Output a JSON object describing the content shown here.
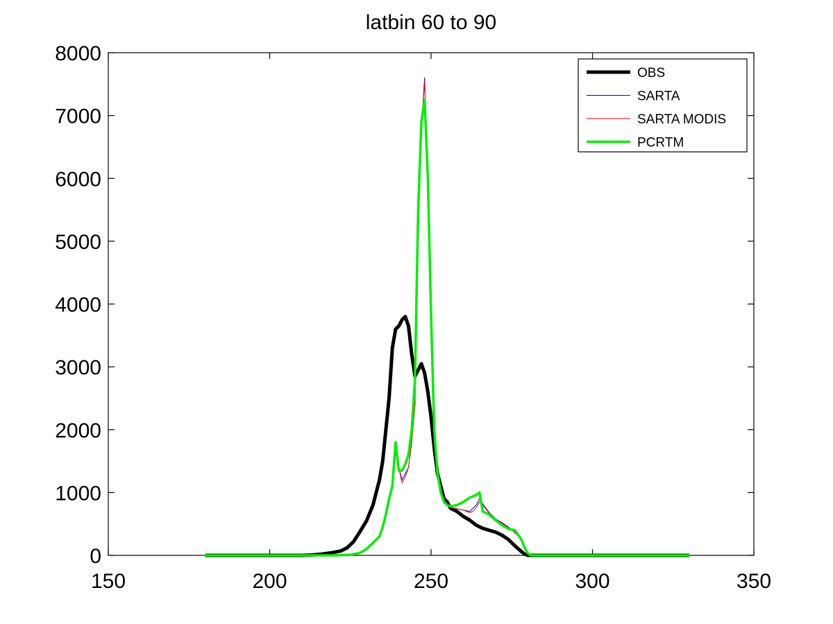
{
  "chart_data": {
    "type": "line",
    "title": "latbin 60  to 90",
    "xlabel": "",
    "ylabel": "",
    "xlim": [
      150,
      350
    ],
    "ylim": [
      0,
      8000
    ],
    "xticks": [
      150,
      200,
      250,
      300,
      350
    ],
    "yticks": [
      0,
      1000,
      2000,
      3000,
      4000,
      5000,
      6000,
      7000,
      8000
    ],
    "grid": false,
    "legend_position": "top-right",
    "series": [
      {
        "name": "OBS",
        "color": "#000000",
        "x": [
          180,
          200,
          210,
          213,
          216,
          219,
          222,
          224,
          226,
          228,
          230,
          232,
          234,
          235,
          236,
          237,
          238,
          239,
          240,
          241,
          242,
          243,
          244,
          245,
          246,
          247,
          248,
          249,
          250,
          251,
          252,
          253,
          254,
          255,
          256,
          258,
          260,
          262,
          264,
          266,
          268,
          270,
          272,
          274,
          276,
          278,
          279,
          280,
          285,
          300,
          330
        ],
        "values": [
          0,
          0,
          0,
          5,
          20,
          40,
          70,
          120,
          220,
          380,
          550,
          800,
          1200,
          1500,
          2000,
          2500,
          3300,
          3600,
          3650,
          3750,
          3800,
          3650,
          3200,
          2850,
          2950,
          3050,
          2900,
          2600,
          2200,
          1700,
          1300,
          1100,
          900,
          850,
          750,
          700,
          620,
          560,
          480,
          430,
          400,
          370,
          320,
          250,
          150,
          60,
          20,
          0,
          0,
          0,
          0
        ]
      },
      {
        "name": "SARTA",
        "color": "#0000cc",
        "x": [
          180,
          210,
          220,
          225,
          228,
          230,
          232,
          234,
          235,
          236,
          237,
          238,
          239,
          240,
          241,
          242,
          243,
          244,
          245,
          246,
          247,
          248,
          249,
          250,
          251,
          252,
          253,
          254,
          255,
          256,
          258,
          260,
          262,
          263,
          264,
          265,
          266,
          268,
          270,
          272,
          274,
          276,
          278,
          279,
          280,
          281,
          300,
          330
        ],
        "values": [
          0,
          0,
          0,
          10,
          40,
          100,
          200,
          300,
          450,
          650,
          900,
          1100,
          1800,
          1400,
          1200,
          1300,
          1400,
          1800,
          2400,
          5000,
          6800,
          7600,
          6000,
          3800,
          2000,
          1300,
          1000,
          850,
          800,
          760,
          740,
          720,
          700,
          750,
          800,
          900,
          820,
          680,
          580,
          520,
          450,
          360,
          250,
          120,
          30,
          0,
          0,
          0
        ]
      },
      {
        "name": "SARTA MODIS",
        "color": "#e00000",
        "x": [
          180,
          210,
          220,
          225,
          228,
          230,
          232,
          234,
          235,
          236,
          237,
          238,
          239,
          240,
          241,
          242,
          243,
          244,
          245,
          246,
          247,
          248,
          249,
          250,
          251,
          252,
          253,
          254,
          255,
          256,
          258,
          260,
          262,
          263,
          264,
          265,
          266,
          268,
          270,
          272,
          274,
          276,
          278,
          279,
          280,
          281,
          300,
          330
        ],
        "values": [
          0,
          0,
          0,
          10,
          40,
          100,
          200,
          300,
          450,
          650,
          900,
          1100,
          1800,
          1400,
          1150,
          1250,
          1400,
          1800,
          2400,
          5000,
          6800,
          7550,
          6000,
          3800,
          2000,
          1300,
          1000,
          850,
          800,
          760,
          740,
          720,
          680,
          700,
          760,
          850,
          800,
          670,
          570,
          510,
          440,
          360,
          250,
          120,
          30,
          0,
          0,
          0
        ]
      },
      {
        "name": "PCRTM",
        "color": "#00ee00",
        "x": [
          180,
          210,
          220,
          225,
          228,
          230,
          232,
          234,
          235,
          236,
          237,
          238,
          239,
          240,
          241,
          242,
          243,
          244,
          245,
          246,
          247,
          248,
          249,
          250,
          251,
          252,
          253,
          254,
          255,
          256,
          258,
          260,
          262,
          264,
          265,
          266,
          268,
          270,
          272,
          274,
          276,
          278,
          279,
          280,
          281,
          300,
          330
        ],
        "values": [
          0,
          0,
          0,
          10,
          40,
          100,
          200,
          300,
          450,
          650,
          900,
          1100,
          1800,
          1350,
          1350,
          1450,
          1600,
          2000,
          2800,
          5500,
          6900,
          7250,
          6000,
          3800,
          2000,
          1300,
          1000,
          850,
          800,
          780,
          800,
          850,
          920,
          960,
          1000,
          700,
          650,
          560,
          480,
          420,
          400,
          250,
          120,
          30,
          0,
          0,
          0
        ]
      }
    ]
  }
}
